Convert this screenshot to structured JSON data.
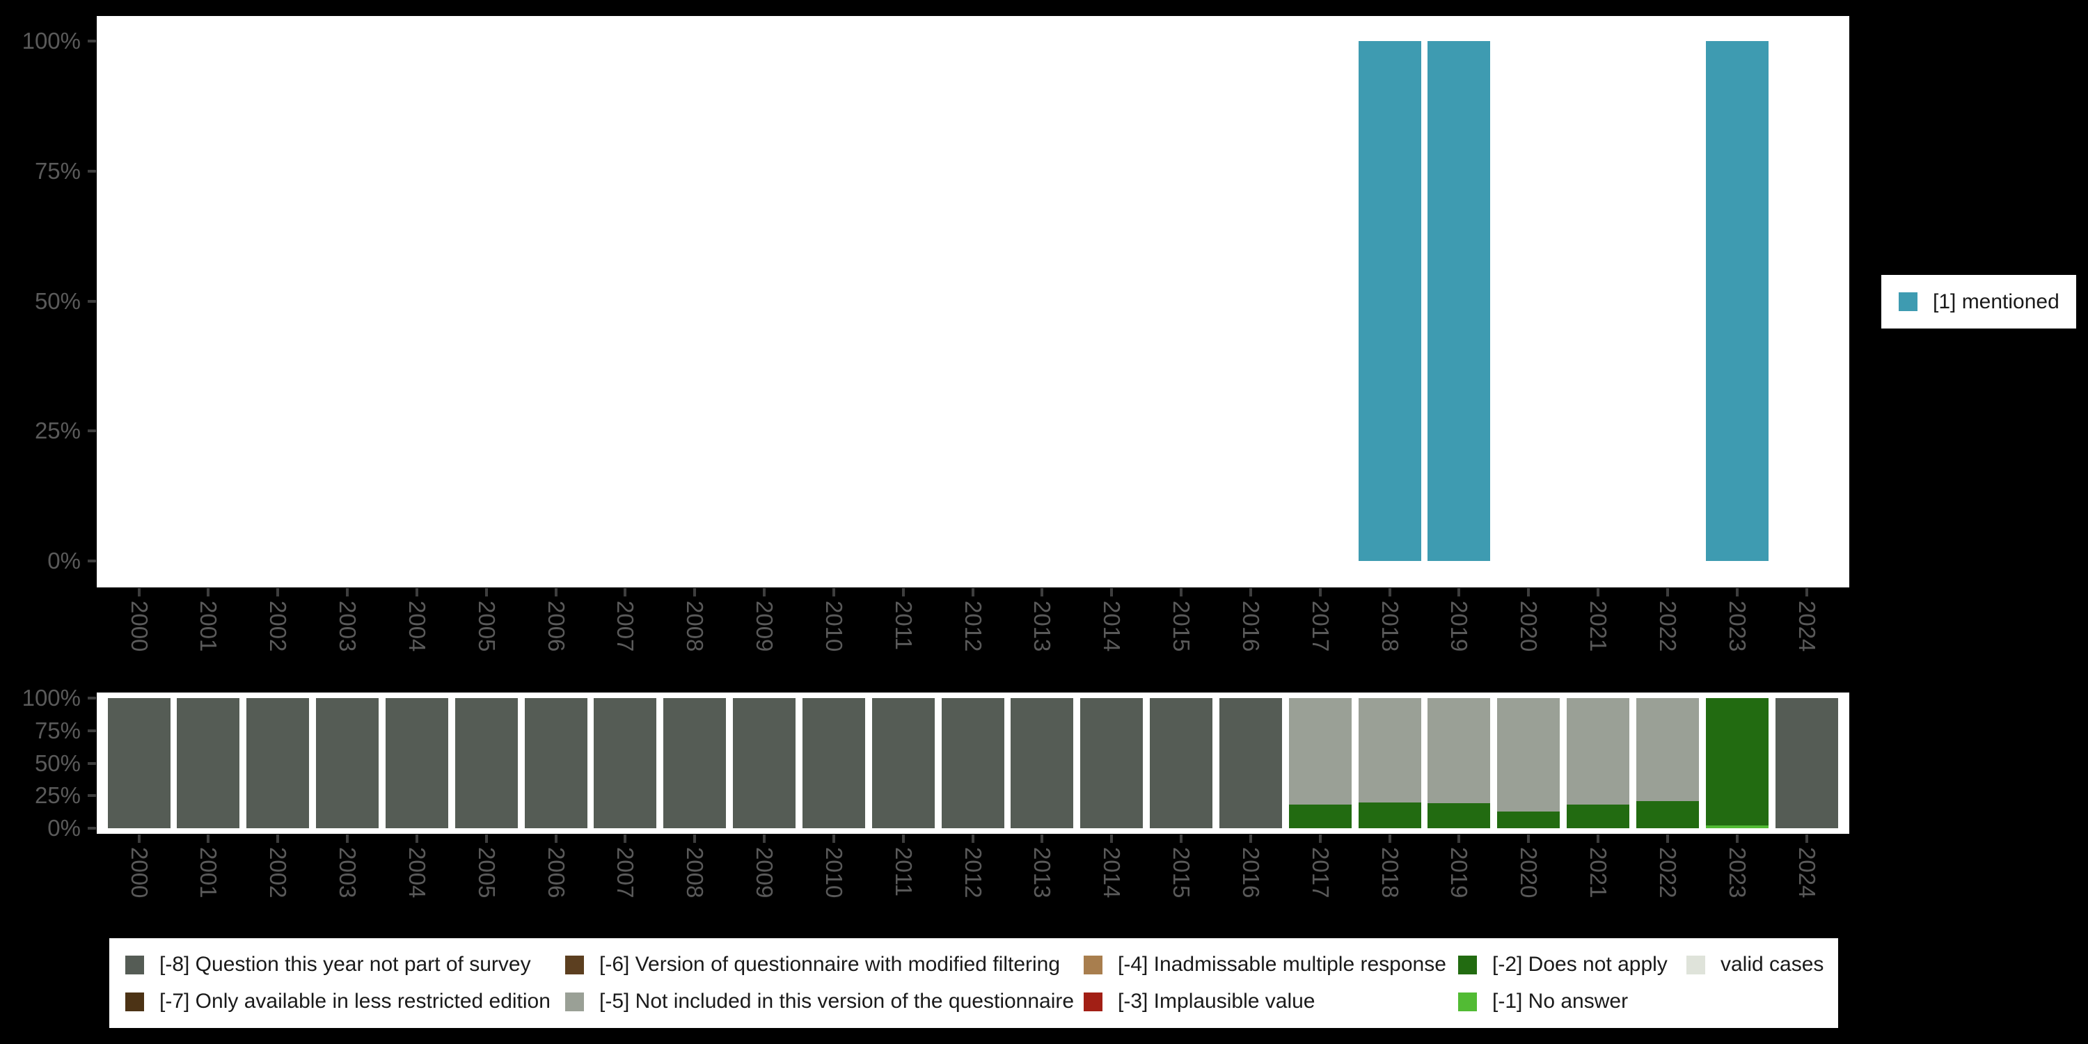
{
  "background": "#000000",
  "axis": {
    "y_tick_labels": [
      "100%",
      "75%",
      "50%",
      "25%",
      "0%"
    ],
    "x_tick_labels": [
      "2000",
      "2001",
      "2002",
      "2003",
      "2004",
      "2005",
      "2006",
      "2007",
      "2008",
      "2009",
      "2010",
      "2011",
      "2012",
      "2013",
      "2014",
      "2015",
      "2016",
      "2017",
      "2018",
      "2019",
      "2020",
      "2021",
      "2022",
      "2023",
      "2024"
    ],
    "tick_color": "#3E3E3E",
    "label_color": "#5A5A5A"
  },
  "legend_right": {
    "label": "[1] mentioned",
    "swatch_color": "#3E9BB1"
  },
  "legend_bottom": {
    "columns": [
      [
        {
          "label": "[-8] Question this year not part of survey",
          "color": "#555C55"
        },
        {
          "label": "[-7] Only available in less restricted edition",
          "color": "#4C3315"
        }
      ],
      [
        {
          "label": "[-6] Version of questionnaire with modified filtering",
          "color": "#5C3F20"
        },
        {
          "label": "[-5] Not included in this version of the questionnaire",
          "color": "#9AA096"
        }
      ],
      [
        {
          "label": "[-4] Inadmissable multiple response",
          "color": "#A87E4E"
        },
        {
          "label": "[-3] Implausible value",
          "color": "#A21F15"
        }
      ],
      [
        {
          "label": "[-2] Does not apply",
          "color": "#226B11"
        },
        {
          "label": "[-1] No answer",
          "color": "#52BB34"
        }
      ],
      [
        {
          "label": "valid cases",
          "color": "#DFE3DA"
        }
      ]
    ]
  },
  "chart_data": [
    {
      "type": "bar",
      "title": "",
      "xlabel": "",
      "ylabel": "",
      "ylim": [
        0,
        100
      ],
      "yticks_percent": [
        0,
        25,
        50,
        75,
        100
      ],
      "grid": false,
      "legend_position": "right",
      "categories": [
        "2000",
        "2001",
        "2002",
        "2003",
        "2004",
        "2005",
        "2006",
        "2007",
        "2008",
        "2009",
        "2010",
        "2011",
        "2012",
        "2013",
        "2014",
        "2015",
        "2016",
        "2017",
        "2018",
        "2019",
        "2020",
        "2021",
        "2022",
        "2023",
        "2024"
      ],
      "series": [
        {
          "name": "[1] mentioned",
          "color": "#3E9BB1",
          "values": [
            0,
            0,
            0,
            0,
            0,
            0,
            0,
            0,
            0,
            0,
            0,
            0,
            0,
            0,
            0,
            0,
            0,
            0,
            100,
            100,
            0,
            0,
            0,
            100,
            0
          ]
        }
      ]
    },
    {
      "type": "bar",
      "stacked": true,
      "title": "",
      "xlabel": "",
      "ylabel": "",
      "ylim": [
        0,
        100
      ],
      "yticks_percent": [
        0,
        25,
        50,
        75,
        100
      ],
      "grid": false,
      "legend_position": "bottom",
      "note": "series listed in draw order top-to-bottom of each stacked bar",
      "categories": [
        "2000",
        "2001",
        "2002",
        "2003",
        "2004",
        "2005",
        "2006",
        "2007",
        "2008",
        "2009",
        "2010",
        "2011",
        "2012",
        "2013",
        "2014",
        "2015",
        "2016",
        "2017",
        "2018",
        "2019",
        "2020",
        "2021",
        "2022",
        "2023",
        "2024"
      ],
      "series": [
        {
          "name": "[-8] Question this year not part of survey",
          "color": "#555C55",
          "values": [
            100,
            100,
            100,
            100,
            100,
            100,
            100,
            100,
            100,
            100,
            100,
            100,
            100,
            100,
            100,
            100,
            100,
            0,
            0,
            0,
            0,
            0,
            0,
            0,
            100
          ]
        },
        {
          "name": "[-7] Only available in less restricted edition",
          "color": "#4C3315",
          "values": [
            0,
            0,
            0,
            0,
            0,
            0,
            0,
            0,
            0,
            0,
            0,
            0,
            0,
            0,
            0,
            0,
            0,
            0,
            0,
            0,
            0,
            0,
            0,
            0,
            0
          ]
        },
        {
          "name": "[-6] Version of questionnaire with modified filtering",
          "color": "#5C3F20",
          "values": [
            0,
            0,
            0,
            0,
            0,
            0,
            0,
            0,
            0,
            0,
            0,
            0,
            0,
            0,
            0,
            0,
            0,
            0,
            0,
            0,
            0,
            0,
            0,
            0,
            0
          ]
        },
        {
          "name": "[-5] Not included in this version of the questionnaire",
          "color": "#9AA096",
          "values": [
            0,
            0,
            0,
            0,
            0,
            0,
            0,
            0,
            0,
            0,
            0,
            0,
            0,
            0,
            0,
            0,
            0,
            82,
            80,
            81,
            87,
            82,
            79,
            0,
            0
          ]
        },
        {
          "name": "[-4] Inadmissable multiple response",
          "color": "#A87E4E",
          "values": [
            0,
            0,
            0,
            0,
            0,
            0,
            0,
            0,
            0,
            0,
            0,
            0,
            0,
            0,
            0,
            0,
            0,
            0,
            0,
            0,
            0,
            0,
            0,
            0,
            0
          ]
        },
        {
          "name": "[-3] Implausible value",
          "color": "#A21F15",
          "values": [
            0,
            0,
            0,
            0,
            0,
            0,
            0,
            0,
            0,
            0,
            0,
            0,
            0,
            0,
            0,
            0,
            0,
            0,
            0,
            0,
            0,
            0,
            0,
            0,
            0
          ]
        },
        {
          "name": "[-2] Does not apply",
          "color": "#226B11",
          "values": [
            0,
            0,
            0,
            0,
            0,
            0,
            0,
            0,
            0,
            0,
            0,
            0,
            0,
            0,
            0,
            0,
            0,
            18,
            20,
            19,
            13,
            18,
            21,
            98,
            0
          ]
        },
        {
          "name": "[-1] No answer",
          "color": "#52BB34",
          "values": [
            0,
            0,
            0,
            0,
            0,
            0,
            0,
            0,
            0,
            0,
            0,
            0,
            0,
            0,
            0,
            0,
            0,
            0,
            0,
            0,
            0,
            0,
            0,
            2,
            0
          ]
        },
        {
          "name": "valid cases",
          "color": "#DFE3DA",
          "values": [
            0,
            0,
            0,
            0,
            0,
            0,
            0,
            0,
            0,
            0,
            0,
            0,
            0,
            0,
            0,
            0,
            0,
            0,
            0,
            0,
            0,
            0,
            0,
            0,
            0
          ]
        }
      ]
    }
  ]
}
